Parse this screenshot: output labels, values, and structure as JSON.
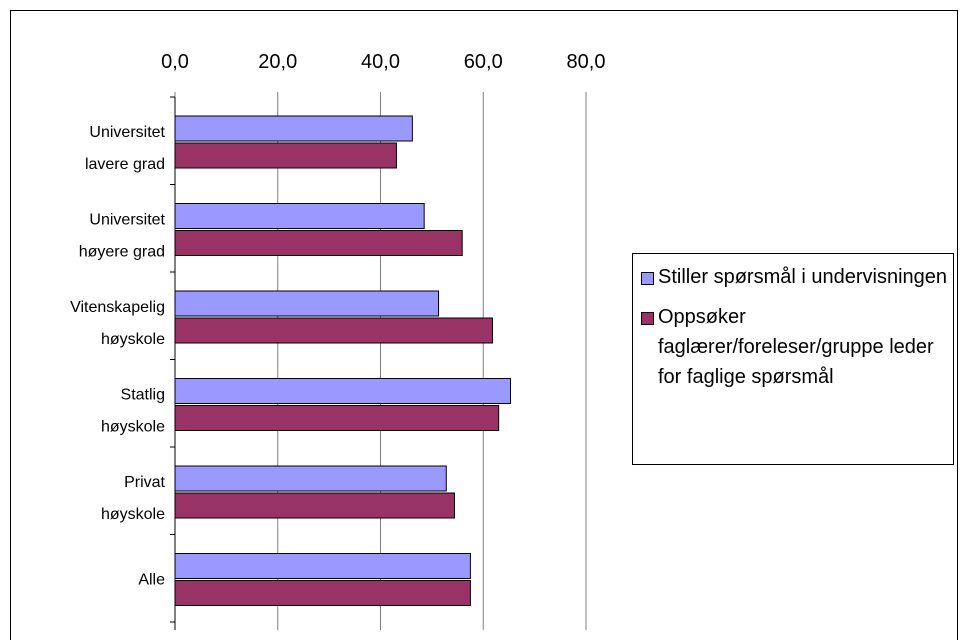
{
  "chart_data": {
    "type": "bar",
    "orientation": "horizontal",
    "categories": [
      "Universitet lavere grad",
      "Universitet høyere grad",
      "Vitenskapelig høyskole",
      "Statlig høyskole",
      "Privat høyskole",
      "Alle"
    ],
    "series": [
      {
        "name": "Stiller spørsmål i undervisningen",
        "color": "#9999ff",
        "values": [
          46.2,
          48.5,
          51.3,
          65.3,
          52.8,
          57.5
        ]
      },
      {
        "name": "Oppsøker faglærer/foreleser/gruppe leder for faglige spørsmål",
        "color": "#993366",
        "values": [
          43.1,
          55.9,
          61.8,
          63.0,
          54.4,
          57.5
        ]
      }
    ],
    "xlim": [
      0,
      80
    ],
    "xticks": [
      {
        "value": 0,
        "label": "0,0"
      },
      {
        "value": 20,
        "label": "20,0"
      },
      {
        "value": 40,
        "label": "40,0"
      },
      {
        "value": 60,
        "label": "60,0"
      },
      {
        "value": 80,
        "label": "80,0"
      }
    ],
    "grid": true,
    "legend": "right"
  }
}
